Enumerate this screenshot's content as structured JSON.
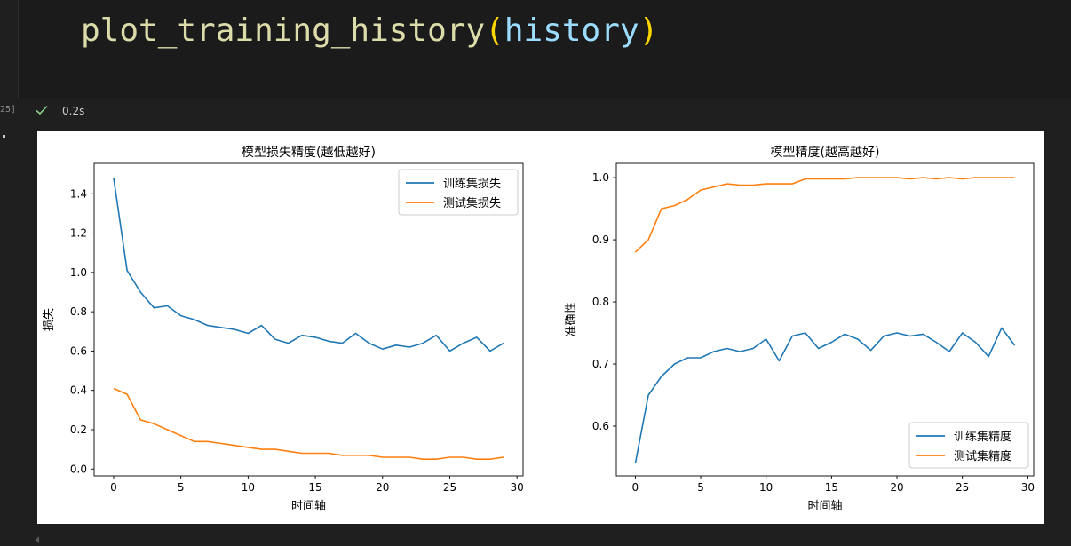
{
  "code_cell": {
    "fn": "plot_training_history",
    "open_paren": "(",
    "arg": "history",
    "close_paren": ")"
  },
  "status": {
    "exec_count": "25]",
    "time": "0.2s",
    "check_color": "#89d185"
  },
  "output": {
    "prompt_dot": "."
  },
  "chart_data": [
    {
      "type": "line",
      "title": "模型损失精度(越低越好)",
      "xlabel": "时间轴",
      "ylabel": "损失",
      "xlim": [
        -1.45,
        30.45
      ],
      "ylim": [
        -0.035,
        1.555
      ],
      "xticks": [
        0,
        5,
        10,
        15,
        20,
        25,
        30
      ],
      "yticks": [
        0.0,
        0.2,
        0.4,
        0.6,
        0.8,
        1.0,
        1.2,
        1.4
      ],
      "legend": "top-right",
      "x": [
        0,
        1,
        2,
        3,
        4,
        5,
        6,
        7,
        8,
        9,
        10,
        11,
        12,
        13,
        14,
        15,
        16,
        17,
        18,
        19,
        20,
        21,
        22,
        23,
        24,
        25,
        26,
        27,
        28,
        29
      ],
      "series": [
        {
          "name": "训练集损失",
          "color": "#1f77b4",
          "values": [
            1.48,
            1.01,
            0.9,
            0.82,
            0.83,
            0.78,
            0.76,
            0.73,
            0.72,
            0.71,
            0.69,
            0.73,
            0.66,
            0.64,
            0.68,
            0.67,
            0.65,
            0.64,
            0.69,
            0.64,
            0.61,
            0.63,
            0.62,
            0.64,
            0.68,
            0.6,
            0.64,
            0.67,
            0.6,
            0.64
          ]
        },
        {
          "name": "测试集损失",
          "color": "#ff7f0e",
          "values": [
            0.41,
            0.38,
            0.25,
            0.23,
            0.2,
            0.17,
            0.14,
            0.14,
            0.13,
            0.12,
            0.11,
            0.1,
            0.1,
            0.09,
            0.08,
            0.08,
            0.08,
            0.07,
            0.07,
            0.07,
            0.06,
            0.06,
            0.06,
            0.05,
            0.05,
            0.06,
            0.06,
            0.05,
            0.05,
            0.06
          ]
        }
      ]
    },
    {
      "type": "line",
      "title": "模型精度(越高越好)",
      "xlabel": "时间轴",
      "ylabel": "准确性",
      "xlim": [
        -1.45,
        30.45
      ],
      "ylim": [
        0.52,
        1.023
      ],
      "xticks": [
        0,
        5,
        10,
        15,
        20,
        25,
        30
      ],
      "yticks": [
        0.6,
        0.7,
        0.8,
        0.9,
        1.0
      ],
      "legend": "bottom-right",
      "x": [
        0,
        1,
        2,
        3,
        4,
        5,
        6,
        7,
        8,
        9,
        10,
        11,
        12,
        13,
        14,
        15,
        16,
        17,
        18,
        19,
        20,
        21,
        22,
        23,
        24,
        25,
        26,
        27,
        28,
        29
      ],
      "series": [
        {
          "name": "训练集精度",
          "color": "#1f77b4",
          "values": [
            0.54,
            0.65,
            0.68,
            0.7,
            0.71,
            0.71,
            0.72,
            0.725,
            0.72,
            0.725,
            0.74,
            0.705,
            0.745,
            0.75,
            0.725,
            0.735,
            0.748,
            0.74,
            0.722,
            0.745,
            0.75,
            0.745,
            0.748,
            0.735,
            0.72,
            0.75,
            0.735,
            0.712,
            0.758,
            0.73
          ]
        },
        {
          "name": "测试集精度",
          "color": "#ff7f0e",
          "values": [
            0.88,
            0.9,
            0.95,
            0.955,
            0.965,
            0.98,
            0.985,
            0.99,
            0.988,
            0.988,
            0.99,
            0.99,
            0.99,
            0.998,
            0.998,
            0.998,
            0.998,
            1.0,
            1.0,
            1.0,
            1.0,
            0.998,
            1.0,
            0.998,
            1.0,
            0.998,
            1.0,
            1.0,
            1.0,
            1.0
          ]
        }
      ]
    }
  ]
}
